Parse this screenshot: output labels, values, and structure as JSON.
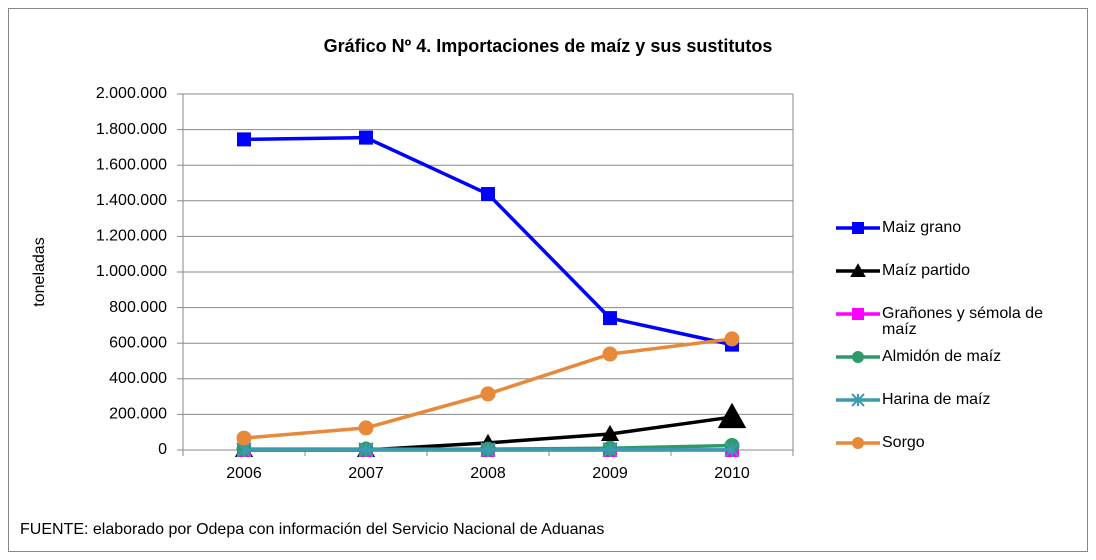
{
  "chart_data": {
    "type": "line",
    "title": "Gráfico Nº 4. Importaciones de maíz y sus sustitutos",
    "y_label": "toneladas",
    "footnote": "FUENTE: elaborado por Odepa con información del Servicio Nacional de Aduanas",
    "categories": [
      "2006",
      "2007",
      "2008",
      "2009",
      "2010"
    ],
    "series": [
      {
        "name": "Maiz grano",
        "color": "#0000ff",
        "marker": "square",
        "values": [
          1745000,
          1755000,
          1438000,
          741000,
          592000
        ]
      },
      {
        "name": "Maíz partido",
        "color": "#000000",
        "marker": "triangle",
        "values": [
          0,
          0,
          40000,
          90000,
          185000
        ]
      },
      {
        "name": "Grañones y sémola de maíz",
        "color": "#ff00ff",
        "marker": "square-x",
        "values": [
          0,
          0,
          0,
          0,
          0
        ]
      },
      {
        "name": "Almidón de maíz",
        "color": "#2e9a6a",
        "marker": "circle",
        "values": [
          5000,
          5000,
          5000,
          10000,
          25000
        ]
      },
      {
        "name": "Harina de maíz",
        "color": "#3c9bb0",
        "marker": "star",
        "values": [
          1000,
          1000,
          1000,
          1000,
          1000
        ]
      },
      {
        "name": "Sorgo",
        "color": "#e8883a",
        "marker": "circle",
        "values": [
          67000,
          124000,
          315000,
          539000,
          624000
        ]
      }
    ],
    "ylim": [
      0,
      2000000
    ],
    "yticks": [
      0,
      {
        "value": 200000,
        "label": "200.000"
      },
      {
        "value": 400000,
        "label": "400.000"
      },
      {
        "value": 600000,
        "label": "600.000"
      },
      {
        "value": 800000,
        "label": "800.000"
      },
      {
        "value": 1000000,
        "label": "1.000.000"
      },
      {
        "value": 1200000,
        "label": "1.200.000"
      },
      {
        "value": 1400000,
        "label": "1.400.000"
      },
      {
        "value": 1600000,
        "label": "1.600.000"
      },
      {
        "value": 1800000,
        "label": "1.800.000"
      },
      {
        "value": 2000000,
        "label": "2.000.000"
      }
    ],
    "grid": true,
    "legend": "right"
  }
}
